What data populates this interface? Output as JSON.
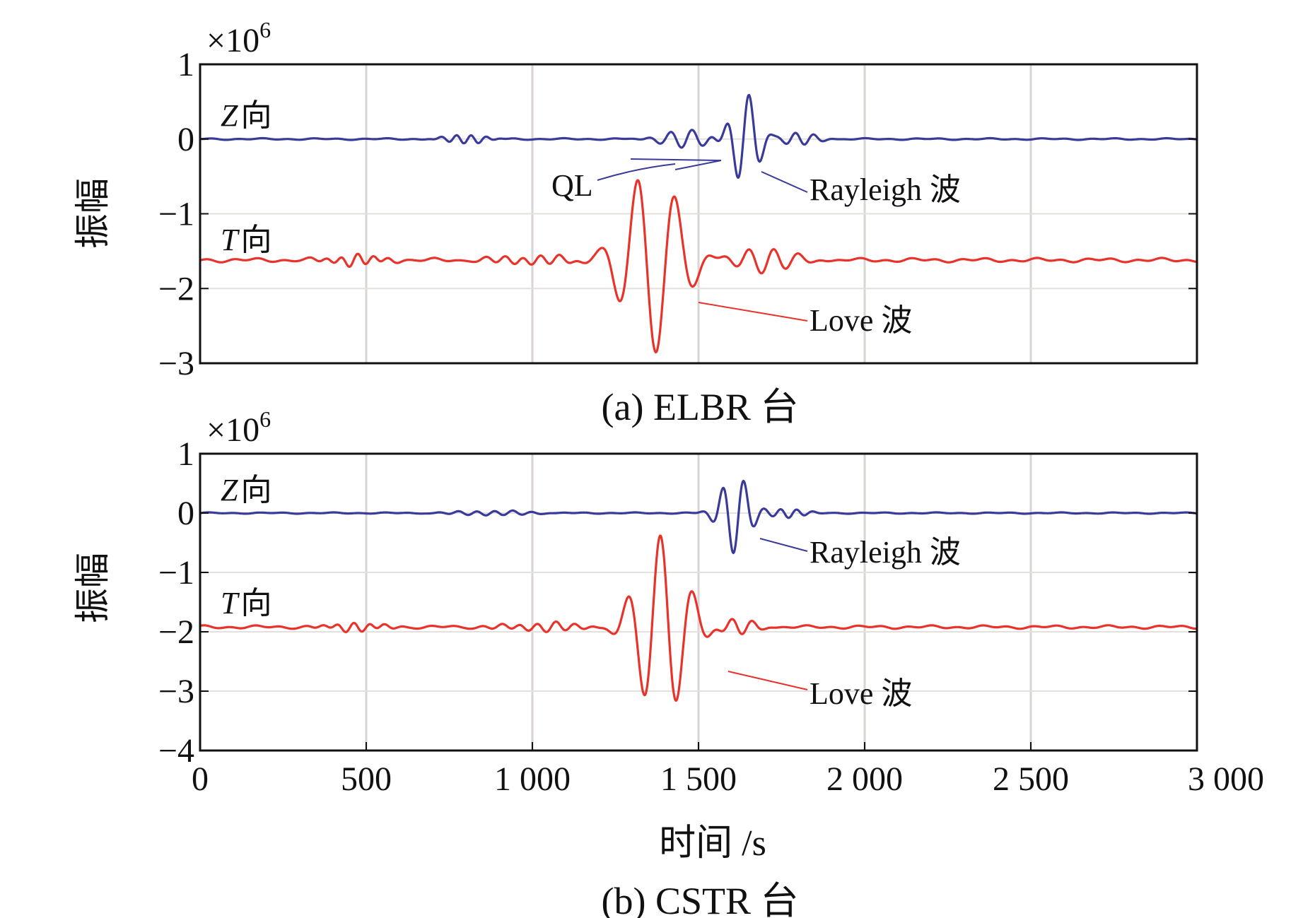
{
  "chart_data": [
    {
      "type": "line",
      "title": "(a) ELBR 台",
      "ylabel": "振幅",
      "multiplier": "×10",
      "multiplier_exp": "6",
      "ylim": [
        -3,
        1
      ],
      "yticks": [
        1,
        0,
        -1,
        -2,
        -3
      ],
      "ytick_labels": [
        "1",
        "0",
        "−1",
        "−2",
        "−3"
      ],
      "xlim": [
        0,
        3000
      ],
      "xgrid": [
        0,
        500,
        1000,
        1500,
        2000,
        2500,
        3000
      ],
      "series": [
        {
          "name": "Z向",
          "label_italic": "Z",
          "label_rest": "向",
          "color": "#3a3a9a",
          "baseline": 0,
          "noise": 0.012,
          "packets": [
            {
              "t": 800,
              "w": 70,
              "amp": 0.06,
              "period": 45
            },
            {
              "t": 1460,
              "w": 90,
              "amp": 0.12,
              "period": 65
            },
            {
              "t": 1640,
              "w": 55,
              "amp": 0.62,
              "period": 70
            },
            {
              "t": 1800,
              "w": 70,
              "amp": 0.08,
              "period": 55
            }
          ]
        },
        {
          "name": "T向",
          "label_italic": "T",
          "label_rest": "向",
          "color": "#e8322a",
          "baseline": -1.62,
          "noise": 0.03,
          "packets": [
            {
              "t": 470,
              "w": 90,
              "amp": 0.07,
              "period": 48
            },
            {
              "t": 1000,
              "w": 130,
              "amp": 0.06,
              "period": 55
            },
            {
              "t": 1360,
              "w": 110,
              "amp": 1.25,
              "period": 115
            },
            {
              "t": 1700,
              "w": 120,
              "amp": 0.18,
              "period": 75
            }
          ]
        }
      ],
      "annotations": [
        {
          "text": "QL",
          "target_t": 1500,
          "target_y": -0.3
        },
        {
          "text": "Rayleigh 波",
          "target_t": 1690,
          "target_y": -0.42
        },
        {
          "text": "Love 波",
          "target_t": 1490,
          "target_y": -2.15
        }
      ]
    },
    {
      "type": "line",
      "title": "(b) CSTR 台",
      "ylabel": "振幅",
      "multiplier": "×10",
      "multiplier_exp": "6",
      "xlabel": "时间 /s",
      "ylim": [
        -4,
        1
      ],
      "yticks": [
        1,
        0,
        -1,
        -2,
        -3,
        -4
      ],
      "ytick_labels": [
        "1",
        "0",
        "−1",
        "−2",
        "−3",
        "−4"
      ],
      "xlim": [
        0,
        3000
      ],
      "xticks": [
        0,
        500,
        1000,
        1500,
        2000,
        2500,
        3000
      ],
      "xtick_labels": [
        "0",
        "500",
        "1 000",
        "1 500",
        "2 000",
        "2 500",
        "3 000"
      ],
      "series": [
        {
          "name": "Z向",
          "label_italic": "Z",
          "label_rest": "向",
          "color": "#3a3a9a",
          "baseline": 0,
          "noise": 0.012,
          "packets": [
            {
              "t": 880,
              "w": 130,
              "amp": 0.04,
              "period": 55
            },
            {
              "t": 1610,
              "w": 55,
              "amp": 0.68,
              "period": 65
            },
            {
              "t": 1770,
              "w": 60,
              "amp": 0.08,
              "period": 50
            }
          ]
        },
        {
          "name": "T向",
          "label_italic": "T",
          "label_rest": "向",
          "color": "#e8322a",
          "baseline": -1.92,
          "noise": 0.03,
          "packets": [
            {
              "t": 470,
              "w": 90,
              "amp": 0.07,
              "period": 48
            },
            {
              "t": 1040,
              "w": 140,
              "amp": 0.07,
              "period": 55
            },
            {
              "t": 1390,
              "w": 95,
              "amp": 1.55,
              "period": 100
            },
            {
              "t": 1620,
              "w": 70,
              "amp": 0.12,
              "period": 60
            }
          ]
        }
      ],
      "annotations": [
        {
          "text": "Rayleigh 波",
          "target_t": 1680,
          "target_y": -0.45
        },
        {
          "text": "Love 波",
          "target_t": 1580,
          "target_y": -2.6
        }
      ]
    }
  ]
}
